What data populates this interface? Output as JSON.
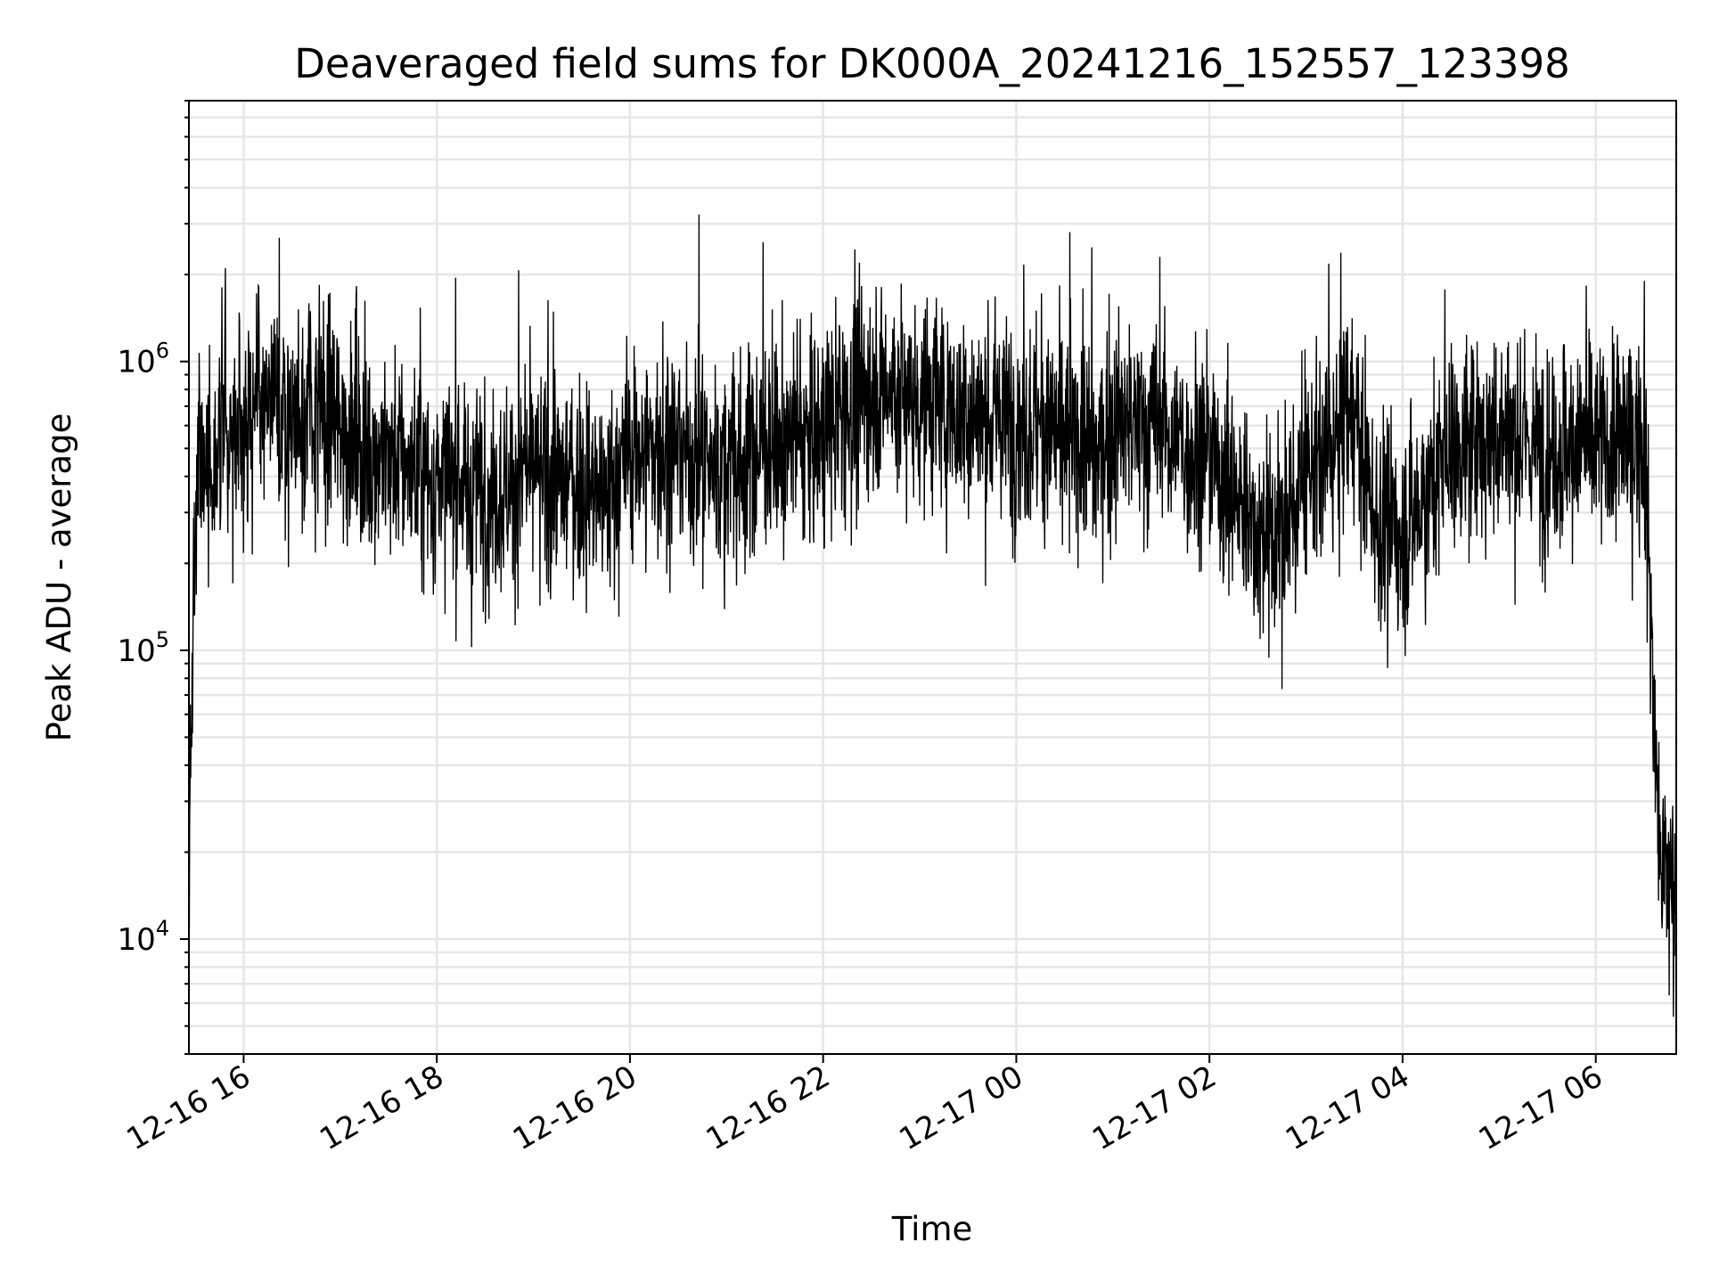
{
  "chart_data": {
    "type": "line",
    "title": "Deaveraged field sums for DK000A_20241216_152557_123398",
    "xlabel": "Time",
    "ylabel": "Peak ADU - average",
    "yscale": "log",
    "ylim": [
      4000,
      8000000
    ],
    "xlim": [
      "12-16 15:26",
      "12-17 06:50"
    ],
    "grid": true,
    "x_tick_labels": [
      "12-16 16",
      "12-16 18",
      "12-16 20",
      "12-16 22",
      "12-17 00",
      "12-17 02",
      "12-17 04",
      "12-17 06"
    ],
    "y_tick_labels": [
      {
        "base": "10",
        "exp": "4",
        "value": 10000
      },
      {
        "base": "10",
        "exp": "5",
        "value": 100000
      },
      {
        "base": "10",
        "exp": "6",
        "value": 1000000
      }
    ],
    "series": [
      {
        "color": "#000000",
        "x": [
          "12-16 15:26",
          "12-16 15:30",
          "12-16 15:45",
          "12-16 16:00",
          "12-16 16:30",
          "12-16 17:00",
          "12-16 17:15",
          "12-16 17:30",
          "12-16 18:00",
          "12-16 18:30",
          "12-16 19:00",
          "12-16 19:30",
          "12-16 19:45",
          "12-16 20:00",
          "12-16 20:30",
          "12-16 21:00",
          "12-16 21:30",
          "12-16 22:00",
          "12-16 22:30",
          "12-16 23:00",
          "12-16 23:30",
          "12-17 00:00",
          "12-17 00:30",
          "12-17 00:50",
          "12-17 01:00",
          "12-17 01:30",
          "12-17 02:00",
          "12-17 02:30",
          "12-17 02:40",
          "12-17 03:00",
          "12-17 03:30",
          "12-17 03:45",
          "12-17 04:00",
          "12-17 04:30",
          "12-17 05:00",
          "12-17 05:30",
          "12-17 06:00",
          "12-17 06:30",
          "12-17 06:40",
          "12-17 06:50"
        ],
        "values": [
          16000,
          400000,
          500000,
          650000,
          700000,
          600000,
          500000,
          480000,
          380000,
          350000,
          400000,
          380000,
          330000,
          480000,
          500000,
          420000,
          520000,
          560000,
          820000,
          750000,
          650000,
          620000,
          560000,
          460000,
          600000,
          580000,
          470000,
          260000,
          230000,
          380000,
          650000,
          260000,
          250000,
          500000,
          560000,
          500000,
          520000,
          540000,
          18000,
          14000
        ]
      }
    ]
  }
}
